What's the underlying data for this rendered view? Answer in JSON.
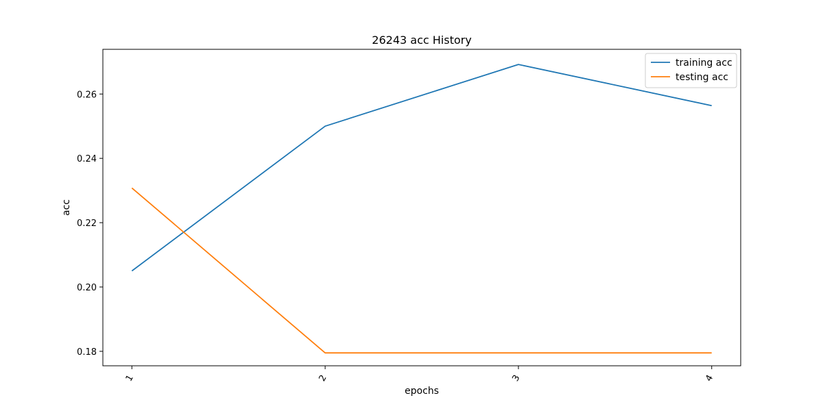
{
  "chart_data": {
    "type": "line",
    "title": "26243 acc History",
    "xlabel": "epochs",
    "ylabel": "acc",
    "x": [
      1,
      2,
      3,
      4
    ],
    "x_tick_labels": [
      "1",
      "2",
      "3",
      "4"
    ],
    "xlim": [
      0.85,
      4.15
    ],
    "ylim": [
      0.1755,
      0.2739
    ],
    "y_ticks": [
      0.18,
      0.2,
      0.22,
      0.24,
      0.26
    ],
    "y_tick_labels": [
      "0.18",
      "0.20",
      "0.22",
      "0.24",
      "0.26"
    ],
    "grid": false,
    "legend_position": "top-right",
    "series": [
      {
        "name": "training acc",
        "values": [
          0.205,
          0.25,
          0.2692,
          0.2564
        ],
        "color": "#1f77b4"
      },
      {
        "name": "testing acc",
        "values": [
          0.2308,
          0.1795,
          0.1795,
          0.1795
        ],
        "color": "#ff7f0e"
      }
    ]
  }
}
